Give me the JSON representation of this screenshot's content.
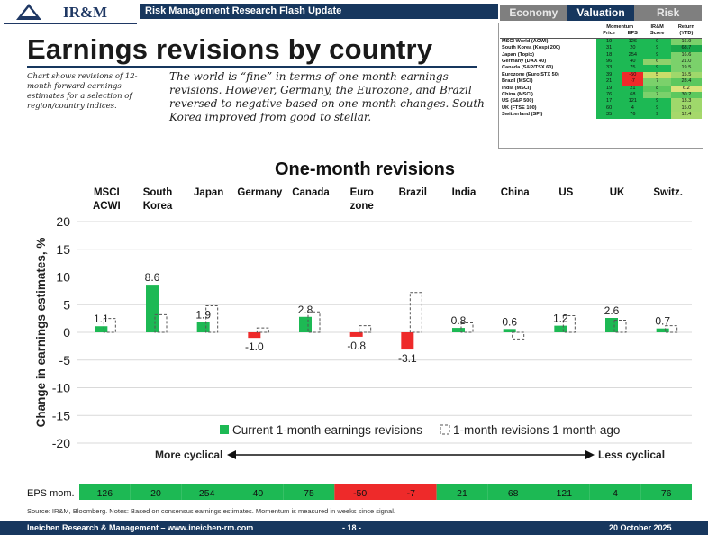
{
  "header": {
    "brand": "IR&M",
    "section": "Risk Management Research Flash Update",
    "tabs": [
      "Economy",
      "Valuation",
      "Risk"
    ],
    "active_tab": "Valuation"
  },
  "title": "Earnings revisions by country",
  "side_note": "Chart shows revisions of 12-month forward earnings estimates for a selection of region/country indices.",
  "main_note": "The world is “fine” in terms of one-month earnings revisions. However, Germany, the Eurozone, and Brazil reversed to negative based on one-month changes. South Korea improved from good to stellar.",
  "table": {
    "group_headers": [
      "Momentum",
      "IR&M",
      "Return"
    ],
    "sub_headers": [
      "Price",
      "EPS",
      "Score",
      "(YTD)"
    ],
    "rows": [
      {
        "name": "MSCI World (ACWI)",
        "price": "19",
        "eps": "126",
        "score": "9",
        "ret": "16.9",
        "c": [
          "#1db954",
          "#1db954",
          "#1db954",
          "#7bd16b"
        ]
      },
      {
        "name": "South Korea (Kospi 200)",
        "price": "31",
        "eps": "20",
        "score": "9",
        "ret": "68.7",
        "c": [
          "#1db954",
          "#1db954",
          "#1db954",
          "#19a84a"
        ]
      },
      {
        "name": "Japan (Topix)",
        "price": "18",
        "eps": "254",
        "score": "9",
        "ret": "16.6",
        "c": [
          "#1db954",
          "#1db954",
          "#1db954",
          "#7bd16b"
        ]
      },
      {
        "name": "Germany (DAX 40)",
        "price": "96",
        "eps": "40",
        "score": "6",
        "ret": "21.0",
        "c": [
          "#1db954",
          "#1db954",
          "#8fd16b",
          "#7bd16b"
        ]
      },
      {
        "name": "Canada (S&P/TSX 60)",
        "price": "33",
        "eps": "75",
        "score": "9",
        "ret": "19.5",
        "c": [
          "#1db954",
          "#1db954",
          "#1db954",
          "#7bd16b"
        ]
      },
      {
        "name": "Eurozone (Euro STX 50)",
        "price": "39",
        "eps": "-50",
        "score": "5",
        "ret": "15.5",
        "c": [
          "#1db954",
          "#f02a2a",
          "#c9dd6a",
          "#9fd86b"
        ]
      },
      {
        "name": "Brazil (MSCI)",
        "price": "21",
        "eps": "-7",
        "score": "7",
        "ret": "28.4",
        "c": [
          "#1db954",
          "#f02a2a",
          "#7bd16b",
          "#5cc85e"
        ]
      },
      {
        "name": "India (MSCI)",
        "price": "19",
        "eps": "21",
        "score": "8",
        "ret": "6.2",
        "c": [
          "#1db954",
          "#1db954",
          "#5cc85e",
          "#d9e47a"
        ]
      },
      {
        "name": "China (MSCI)",
        "price": "76",
        "eps": "68",
        "score": "7",
        "ret": "30.2",
        "c": [
          "#1db954",
          "#1db954",
          "#7bd16b",
          "#5cc85e"
        ]
      },
      {
        "name": "US (S&P 500)",
        "price": "17",
        "eps": "121",
        "score": "9",
        "ret": "13.3",
        "c": [
          "#1db954",
          "#1db954",
          "#1db954",
          "#9fd86b"
        ]
      },
      {
        "name": "UK (FTSE 100)",
        "price": "60",
        "eps": "4",
        "score": "9",
        "ret": "15.0",
        "c": [
          "#1db954",
          "#1db954",
          "#1db954",
          "#9fd86b"
        ]
      },
      {
        "name": "Switzerland (SPI)",
        "price": "35",
        "eps": "76",
        "score": "9",
        "ret": "12.4",
        "c": [
          "#1db954",
          "#1db954",
          "#1db954",
          "#a6d86b"
        ]
      }
    ]
  },
  "chart_data": {
    "type": "bar",
    "title": "One-month revisions",
    "categories": [
      "MSCI ACWI",
      "South Korea",
      "Japan",
      "Germany",
      "Canada",
      "Euro zone",
      "Brazil",
      "India",
      "China",
      "US",
      "UK",
      "Switz."
    ],
    "category_lines": [
      [
        "MSCI",
        "ACWI"
      ],
      [
        "South",
        "Korea"
      ],
      [
        "Japan"
      ],
      [
        "Germany"
      ],
      [
        "Canada"
      ],
      [
        "Euro",
        "zone"
      ],
      [
        "Brazil"
      ],
      [
        "India"
      ],
      [
        "China"
      ],
      [
        "US"
      ],
      [
        "UK"
      ],
      [
        "Switz."
      ]
    ],
    "series": [
      {
        "name": "Current 1-month earnings revisions",
        "values": [
          1.1,
          8.6,
          1.9,
          -1.0,
          2.8,
          -0.8,
          -3.1,
          0.8,
          0.6,
          1.2,
          2.6,
          0.7
        ]
      },
      {
        "name": "1-month revisions 1 month ago",
        "values": [
          2.5,
          3.2,
          4.8,
          0.8,
          3.7,
          1.2,
          7.2,
          1.7,
          -1.2,
          3.0,
          2.2,
          1.2
        ]
      }
    ],
    "value_labels": [
      "1.1",
      "8.6",
      "1.9",
      "-1.0",
      "2.8",
      "-0.8",
      "-3.1",
      "0.8",
      "0.6",
      "1.2",
      "2.6",
      "0.7"
    ],
    "ylabel": "Change in earnings estimates, %",
    "ylim": [
      -20,
      20
    ],
    "yticks": [
      20,
      15,
      10,
      5,
      0,
      -5,
      -10,
      -15,
      -20
    ],
    "ytick_labels": [
      "20",
      "15",
      "10",
      "5",
      "0",
      "-5",
      "-10",
      "-15",
      "-20"
    ],
    "gridlines": true,
    "colors": {
      "positive": "#1db954",
      "negative": "#ee2a2a",
      "prior": "#ffffff"
    },
    "axis_note_left": "More cyclical",
    "axis_note_right": "Less cyclical",
    "eps_row_label": "EPS mom.",
    "eps_mom": [
      "126",
      "20",
      "254",
      "40",
      "75",
      "-50",
      "-7",
      "21",
      "68",
      "121",
      "4",
      "76"
    ]
  },
  "footer": {
    "source": "Source: IR&M, Bloomberg. Notes: Based on consensus earnings estimates. Momentum is measured in weeks since signal.",
    "left": "Ineichen Research & Management – www.ineichen-rm.com",
    "page": "- 18 -",
    "date": "20 October 2025"
  }
}
